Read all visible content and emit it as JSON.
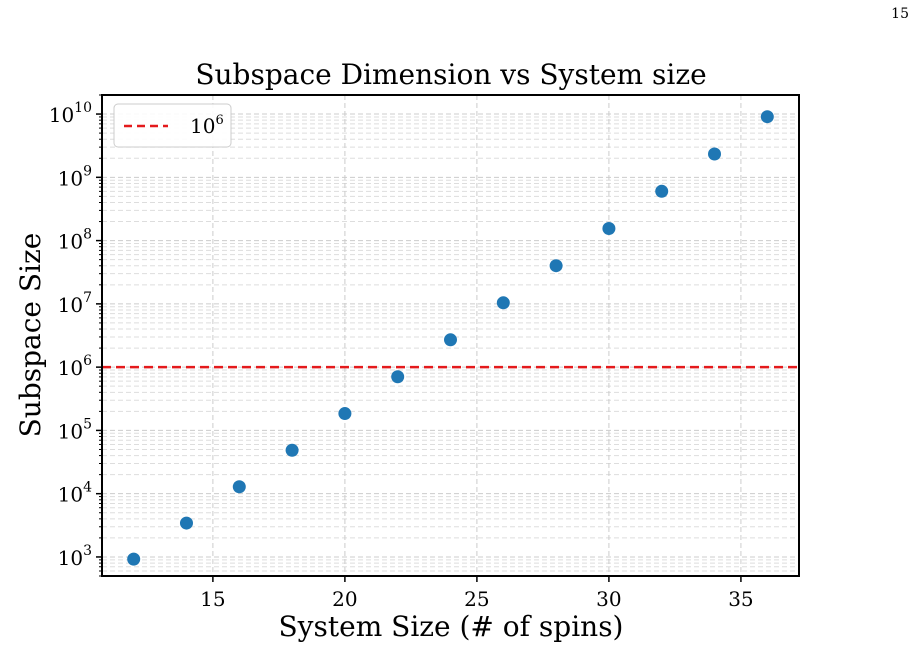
{
  "page": {
    "number": "15"
  },
  "chart_data": {
    "type": "scatter",
    "title": "Subspace Dimension vs System size",
    "xlabel": "System Size (# of spins)",
    "ylabel": "Subspace Size",
    "xlim": [
      10.8,
      37.2
    ],
    "ylim": [
      500,
      20000000000
    ],
    "yscale": "log",
    "xticks": [
      15,
      20,
      25,
      30,
      35
    ],
    "yticks": [
      {
        "base": "10",
        "exp": "3",
        "value": 1000
      },
      {
        "base": "10",
        "exp": "4",
        "value": 10000
      },
      {
        "base": "10",
        "exp": "5",
        "value": 100000
      },
      {
        "base": "10",
        "exp": "6",
        "value": 1000000
      },
      {
        "base": "10",
        "exp": "7",
        "value": 10000000
      },
      {
        "base": "10",
        "exp": "8",
        "value": 100000000
      },
      {
        "base": "10",
        "exp": "9",
        "value": 1000000000
      },
      {
        "base": "10",
        "exp": "10",
        "value": 10000000000
      }
    ],
    "grid": true,
    "legend_position": "upper-left",
    "series": [
      {
        "kind": "scatter",
        "color": "#1f77b4",
        "points": [
          {
            "x": 12,
            "y": 924
          },
          {
            "x": 14,
            "y": 3432
          },
          {
            "x": 16,
            "y": 12870
          },
          {
            "x": 18,
            "y": 48620
          },
          {
            "x": 20,
            "y": 184756
          },
          {
            "x": 22,
            "y": 705432
          },
          {
            "x": 24,
            "y": 2704156
          },
          {
            "x": 26,
            "y": 10400600
          },
          {
            "x": 28,
            "y": 40116600
          },
          {
            "x": 30,
            "y": 155117520
          },
          {
            "x": 32,
            "y": 601080390
          },
          {
            "x": 34,
            "y": 2333606220
          },
          {
            "x": 36,
            "y": 9075135300
          }
        ]
      },
      {
        "kind": "hline",
        "name": {
          "base": "10",
          "exp": "6"
        },
        "y": 1000000,
        "color": "#e41a1c",
        "style": "dashed"
      }
    ]
  }
}
